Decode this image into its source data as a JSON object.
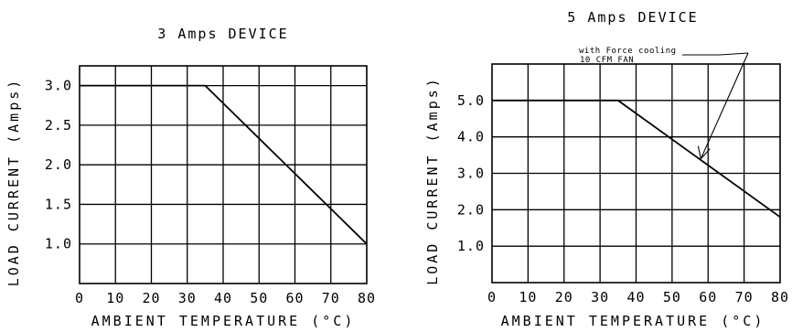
{
  "chart_data": [
    {
      "type": "line",
      "title": "3 Amps DEVICE",
      "xlabel": "AMBIENT TEMPERATURE (°C)",
      "ylabel": "LOAD CURRENT (Amps)",
      "xlim": [
        0,
        80
      ],
      "ylim": [
        0.5,
        3.25
      ],
      "grid": true,
      "xticks": [
        0,
        10,
        20,
        30,
        40,
        50,
        60,
        70,
        80
      ],
      "yticks": [
        1.0,
        1.5,
        2.0,
        2.5,
        3.0
      ],
      "xtick_labels": [
        "0",
        "10",
        "20",
        "30",
        "40",
        "50",
        "60",
        "70",
        "80"
      ],
      "ytick_labels": [
        "1.0",
        "1.5",
        "2.0",
        "2.5",
        "3.0"
      ],
      "series": [
        {
          "x": [
            0,
            35,
            80
          ],
          "y": [
            3.0,
            3.0,
            1.0
          ]
        }
      ]
    },
    {
      "type": "line",
      "title": "5 Amps DEVICE",
      "xlabel": "AMBIENT TEMPERATURE (°C)",
      "ylabel": "LOAD CURRENT (Amps)",
      "xlim": [
        0,
        80
      ],
      "ylim": [
        0,
        6.0
      ],
      "grid": true,
      "xticks": [
        0,
        10,
        20,
        30,
        40,
        50,
        60,
        70,
        80
      ],
      "yticks": [
        1.0,
        2.0,
        3.0,
        4.0,
        5.0
      ],
      "xtick_labels": [
        "0",
        "10",
        "20",
        "30",
        "40",
        "50",
        "60",
        "70",
        "80"
      ],
      "ytick_labels": [
        "1.0",
        "2.0",
        "3.0",
        "4.0",
        "5.0"
      ],
      "series": [
        {
          "x": [
            0,
            35,
            80
          ],
          "y": [
            5.0,
            5.0,
            1.8
          ]
        }
      ],
      "annotation": {
        "line1": "with Force cooling",
        "line2": "10 CFM FAN",
        "target_x": 58,
        "target_y": 3.4
      }
    }
  ]
}
